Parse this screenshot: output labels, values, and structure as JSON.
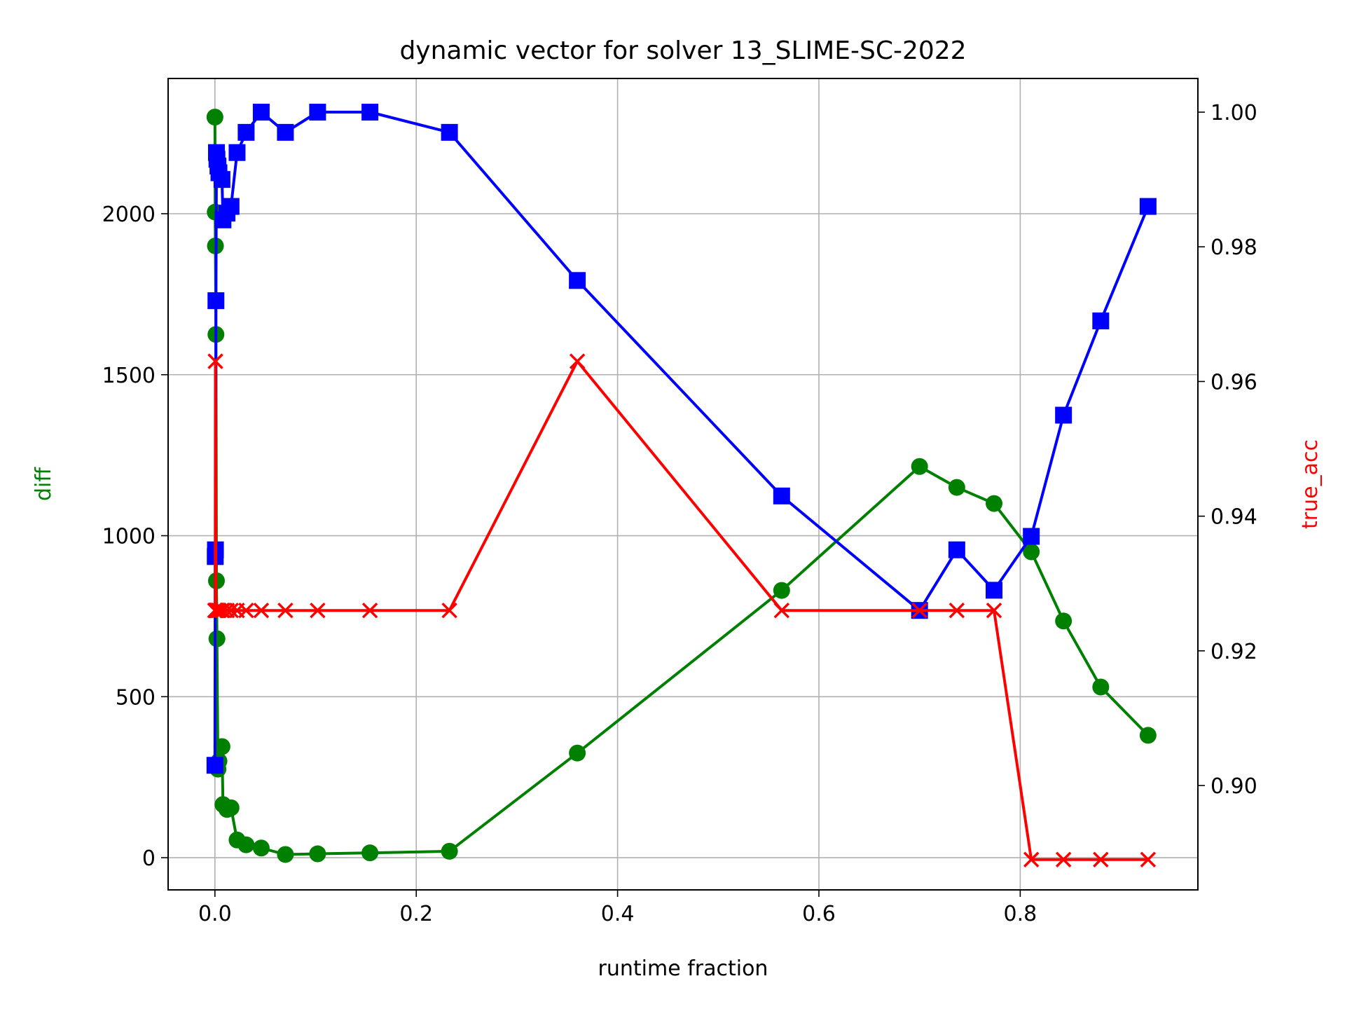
{
  "chart_data": {
    "type": "line",
    "title": "dynamic vector for solver 13_SLIME-SC-2022",
    "xlabel": "runtime fraction",
    "ylabel_left": "diff",
    "ylabel_right": "true_acc",
    "xlim": [
      -0.0465,
      0.9765
    ],
    "ylim_left": [
      -100,
      2420
    ],
    "ylim_right": [
      0.8845,
      1.005
    ],
    "x_ticks": [
      {
        "value": 0.0,
        "label": "0.0"
      },
      {
        "value": 0.2,
        "label": "0.2"
      },
      {
        "value": 0.4,
        "label": "0.4"
      },
      {
        "value": 0.6,
        "label": "0.6"
      },
      {
        "value": 0.8,
        "label": "0.8"
      }
    ],
    "y_left_ticks": [
      {
        "value": 0,
        "label": "0"
      },
      {
        "value": 500,
        "label": "500"
      },
      {
        "value": 1000,
        "label": "1000"
      },
      {
        "value": 1500,
        "label": "1500"
      },
      {
        "value": 2000,
        "label": "2000"
      }
    ],
    "y_right_ticks": [
      {
        "value": 0.9,
        "label": "0.90"
      },
      {
        "value": 0.92,
        "label": "0.92"
      },
      {
        "value": 0.94,
        "label": "0.94"
      },
      {
        "value": 0.96,
        "label": "0.96"
      },
      {
        "value": 0.98,
        "label": "0.98"
      },
      {
        "value": 1.0,
        "label": "1.00"
      }
    ],
    "grid": true,
    "colors": {
      "diff": "#008000",
      "acc_blue": "#0000ff",
      "acc_red": "#ff0000",
      "axis_text": "#000000",
      "grid": "#b0b0b0"
    },
    "series": [
      {
        "key": "diff",
        "axis": "left",
        "marker": "circle",
        "x": [
          0.0,
          0.0003,
          0.0005,
          0.001,
          0.0015,
          0.002,
          0.003,
          0.004,
          0.007,
          0.008,
          0.012,
          0.016,
          0.022,
          0.031,
          0.046,
          0.07,
          0.102,
          0.154,
          0.233,
          0.36,
          0.563,
          0.7,
          0.737,
          0.774,
          0.811,
          0.843,
          0.88,
          0.927
        ],
        "values": [
          2300,
          2005,
          1900,
          1625,
          860,
          680,
          275,
          300,
          345,
          165,
          150,
          155,
          55,
          40,
          30,
          10,
          12,
          15,
          20,
          325,
          830,
          1215,
          1150,
          1100,
          950,
          735,
          530,
          380
        ]
      },
      {
        "key": "true_acc_blue",
        "axis": "right",
        "marker": "square",
        "x": [
          0.0,
          0.0003,
          0.0005,
          0.001,
          0.0015,
          0.002,
          0.003,
          0.004,
          0.007,
          0.008,
          0.012,
          0.016,
          0.022,
          0.031,
          0.046,
          0.07,
          0.102,
          0.154,
          0.233,
          0.36,
          0.563,
          0.7,
          0.737,
          0.774,
          0.811,
          0.843,
          0.88,
          0.927
        ],
        "values": [
          0.903,
          0.934,
          0.935,
          0.972,
          0.994,
          0.993,
          0.992,
          0.991,
          0.99,
          0.984,
          0.985,
          0.986,
          0.994,
          0.997,
          1.0,
          0.997,
          1.0,
          1.0,
          0.997,
          0.975,
          0.943,
          0.926,
          0.935,
          0.929,
          0.937,
          0.955,
          0.969,
          0.986
        ]
      },
      {
        "key": "true_acc_red",
        "axis": "right",
        "marker": "x",
        "x": [
          0.0,
          0.0003,
          0.0005,
          0.001,
          0.0015,
          0.002,
          0.003,
          0.004,
          0.007,
          0.008,
          0.012,
          0.016,
          0.022,
          0.031,
          0.046,
          0.07,
          0.102,
          0.154,
          0.233,
          0.36,
          0.563,
          0.7,
          0.737,
          0.774,
          0.811,
          0.843,
          0.88,
          0.927
        ],
        "values": [
          0.926,
          0.926,
          0.963,
          0.926,
          0.926,
          0.926,
          0.926,
          0.926,
          0.926,
          0.926,
          0.926,
          0.926,
          0.926,
          0.926,
          0.926,
          0.926,
          0.926,
          0.926,
          0.926,
          0.963,
          0.926,
          0.926,
          0.926,
          0.926,
          0.889,
          0.889,
          0.889,
          0.889
        ]
      }
    ]
  }
}
